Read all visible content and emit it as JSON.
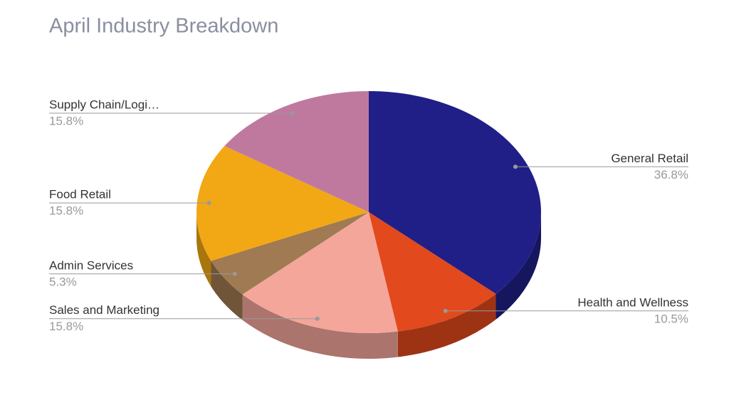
{
  "chart_data": {
    "type": "pie",
    "title": "April Industry Breakdown",
    "categories": [
      "General Retail",
      "Health and Wellness",
      "Sales and Marketing",
      "Admin Services",
      "Food Retail",
      "Supply Chain/Logi…"
    ],
    "values": [
      36.8,
      10.5,
      15.8,
      5.3,
      15.8,
      15.8
    ],
    "value_labels": [
      "36.8%",
      "10.5%",
      "15.8%",
      "5.3%",
      "15.8%",
      "15.8%"
    ],
    "colors": [
      "#1f1f87",
      "#e2491c",
      "#f4a69a",
      "#a07a52",
      "#f2a814",
      "#c0799e"
    ]
  }
}
